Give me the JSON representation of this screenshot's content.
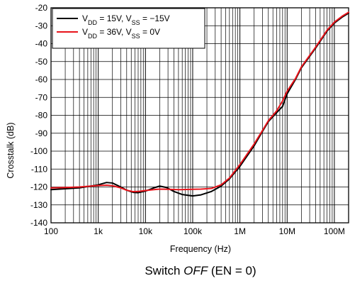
{
  "chart_data": {
    "type": "line",
    "xlabel": "Frequency (Hz)",
    "ylabel": "Crosstalk (dB)",
    "x_scale": "log",
    "xlim": [
      100,
      200000000
    ],
    "ylim": [
      -140,
      -20
    ],
    "x_ticks": [
      100,
      1000,
      10000,
      100000,
      1000000,
      10000000,
      100000000
    ],
    "x_tick_labels": [
      "100",
      "1k",
      "10k",
      "100k",
      "1M",
      "10M",
      "100M"
    ],
    "y_ticks": [
      -140,
      -130,
      -120,
      -110,
      -100,
      -90,
      -80,
      -70,
      -60,
      -50,
      -40,
      -30,
      -20
    ],
    "y_tick_labels": [
      "-140",
      "-130",
      "-120",
      "-110",
      "-100",
      "-90",
      "-80",
      "-70",
      "-60",
      "-50",
      "-40",
      "-30",
      "-20"
    ],
    "grid": true,
    "legend_position": "top-left",
    "series": [
      {
        "name_main": "V",
        "name_parts": [
          {
            "t": "V",
            "sub": false
          },
          {
            "t": "DD",
            "sub": true
          },
          {
            "t": " = 15V, V",
            "sub": false
          },
          {
            "t": "SS",
            "sub": true
          },
          {
            "t": " = −15V",
            "sub": false
          }
        ],
        "color": "#000000",
        "points": [
          [
            100,
            -121.5
          ],
          [
            200,
            -121
          ],
          [
            400,
            -120.5
          ],
          [
            700,
            -119.5
          ],
          [
            1000,
            -118.8
          ],
          [
            1500,
            -117.5
          ],
          [
            2000,
            -117.8
          ],
          [
            3000,
            -120
          ],
          [
            4000,
            -121.8
          ],
          [
            5500,
            -123
          ],
          [
            7000,
            -123.2
          ],
          [
            10000,
            -122.3
          ],
          [
            15000,
            -120.5
          ],
          [
            20000,
            -119.5
          ],
          [
            28000,
            -120.3
          ],
          [
            40000,
            -122.5
          ],
          [
            60000,
            -124.2
          ],
          [
            100000,
            -125
          ],
          [
            150000,
            -124.4
          ],
          [
            250000,
            -122.5
          ],
          [
            400000,
            -119.5
          ],
          [
            600000,
            -115.5
          ],
          [
            1000000,
            -108.5
          ],
          [
            2000000,
            -97
          ],
          [
            3000000,
            -89
          ],
          [
            4000000,
            -83.5
          ],
          [
            6000000,
            -78.5
          ],
          [
            8000000,
            -75
          ],
          [
            10000000,
            -68
          ],
          [
            15000000,
            -60
          ],
          [
            20000000,
            -53.5
          ],
          [
            40000000,
            -42.5
          ],
          [
            70000000,
            -33
          ],
          [
            100000000,
            -28.5
          ],
          [
            150000000,
            -25
          ],
          [
            200000000,
            -23
          ]
        ]
      },
      {
        "name_main": "V",
        "name_parts": [
          {
            "t": "V",
            "sub": false
          },
          {
            "t": "DD",
            "sub": true
          },
          {
            "t": " = 36V, V",
            "sub": false
          },
          {
            "t": "SS",
            "sub": true
          },
          {
            "t": " = 0V",
            "sub": false
          }
        ],
        "color": "#e8141b",
        "points": [
          [
            100,
            -120.5
          ],
          [
            200,
            -120.3
          ],
          [
            400,
            -120
          ],
          [
            700,
            -119.5
          ],
          [
            1000,
            -119.2
          ],
          [
            1500,
            -119
          ],
          [
            2000,
            -119.3
          ],
          [
            3000,
            -120.5
          ],
          [
            4000,
            -121.8
          ],
          [
            5500,
            -122.6
          ],
          [
            7000,
            -122.5
          ],
          [
            10000,
            -122
          ],
          [
            15000,
            -121.5
          ],
          [
            20000,
            -121.2
          ],
          [
            30000,
            -121.3
          ],
          [
            50000,
            -121.5
          ],
          [
            100000,
            -121.3
          ],
          [
            150000,
            -121.2
          ],
          [
            250000,
            -120.8
          ],
          [
            400000,
            -118.8
          ],
          [
            600000,
            -115
          ],
          [
            1000000,
            -107.5
          ],
          [
            2000000,
            -96
          ],
          [
            3000000,
            -88.5
          ],
          [
            4000000,
            -83
          ],
          [
            6000000,
            -77.5
          ],
          [
            8000000,
            -72
          ],
          [
            10000000,
            -66.5
          ],
          [
            15000000,
            -59.5
          ],
          [
            20000000,
            -53
          ],
          [
            40000000,
            -42
          ],
          [
            70000000,
            -32.5
          ],
          [
            100000000,
            -28
          ],
          [
            150000000,
            -24.5
          ],
          [
            200000000,
            -22.5
          ]
        ]
      }
    ]
  },
  "caption_parts": [
    {
      "t": "Switch ",
      "italic": false
    },
    {
      "t": "OFF",
      "italic": true
    },
    {
      "t": " (EN = 0)",
      "italic": false
    }
  ],
  "caption_text": "Switch OFF (EN = 0)"
}
